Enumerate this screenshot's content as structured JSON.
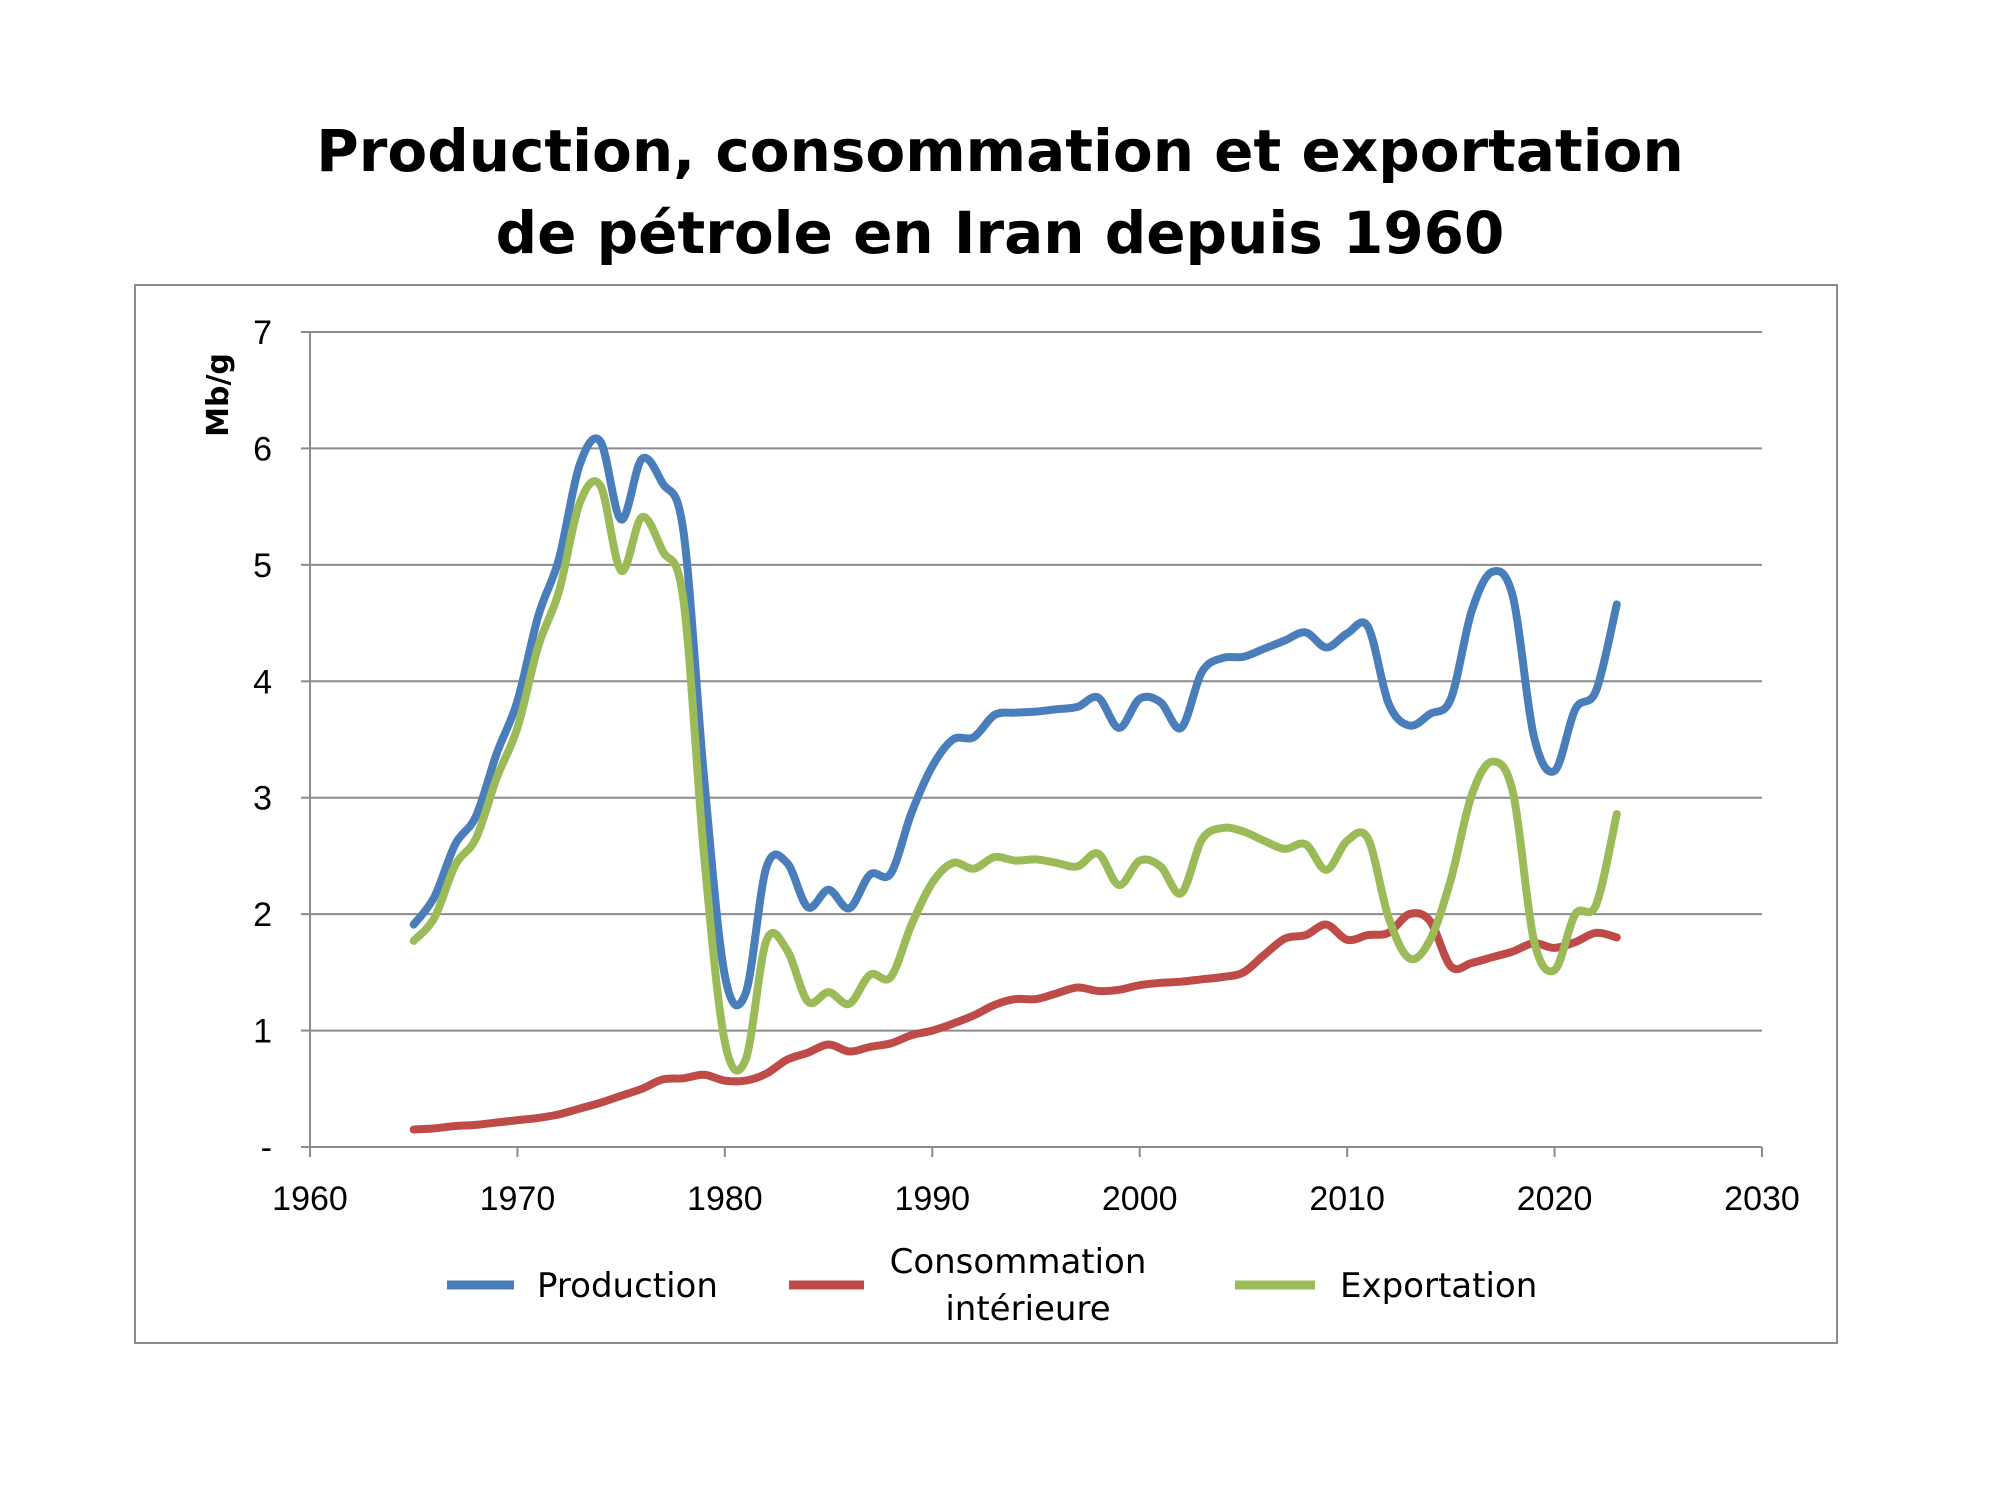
{
  "title": {
    "line1": "Production, consommation et exportation",
    "line2": "de pétrole en Iran depuis 1960"
  },
  "chart_data": {
    "type": "line",
    "ylabel": "Mb/g",
    "xlabel": "",
    "xlim": [
      1960,
      2030
    ],
    "ylim": [
      0,
      7
    ],
    "x_ticks": [
      "1960",
      "1970",
      "1980",
      "1990",
      "2000",
      "2010",
      "2020",
      "2030"
    ],
    "y_ticks": [
      "-",
      "1",
      "2",
      "3",
      "4",
      "5",
      "6",
      "7"
    ],
    "grid": "horizontal",
    "legend_position": "bottom",
    "series": [
      {
        "name": "Production",
        "color": "#4a7ebb",
        "points": [
          [
            1965,
            1.91
          ],
          [
            1966,
            2.15
          ],
          [
            1967,
            2.6
          ],
          [
            1968,
            2.84
          ],
          [
            1969,
            3.38
          ],
          [
            1970,
            3.83
          ],
          [
            1971,
            4.56
          ],
          [
            1972,
            5.05
          ],
          [
            1973,
            5.86
          ],
          [
            1974,
            6.06
          ],
          [
            1975,
            5.39
          ],
          [
            1976,
            5.91
          ],
          [
            1977,
            5.7
          ],
          [
            1978,
            5.29
          ],
          [
            1979,
            3.17
          ],
          [
            1980,
            1.47
          ],
          [
            1981,
            1.32
          ],
          [
            1982,
            2.4
          ],
          [
            1983,
            2.44
          ],
          [
            1984,
            2.06
          ],
          [
            1985,
            2.21
          ],
          [
            1986,
            2.05
          ],
          [
            1987,
            2.34
          ],
          [
            1988,
            2.35
          ],
          [
            1989,
            2.87
          ],
          [
            1990,
            3.27
          ],
          [
            1991,
            3.5
          ],
          [
            1992,
            3.52
          ],
          [
            1993,
            3.71
          ],
          [
            1994,
            3.73
          ],
          [
            1995,
            3.74
          ],
          [
            1996,
            3.76
          ],
          [
            1997,
            3.78
          ],
          [
            1998,
            3.86
          ],
          [
            1999,
            3.6
          ],
          [
            2000,
            3.85
          ],
          [
            2001,
            3.82
          ],
          [
            2002,
            3.6
          ],
          [
            2003,
            4.08
          ],
          [
            2004,
            4.2
          ],
          [
            2005,
            4.21
          ],
          [
            2006,
            4.28
          ],
          [
            2007,
            4.35
          ],
          [
            2008,
            4.42
          ],
          [
            2009,
            4.29
          ],
          [
            2010,
            4.41
          ],
          [
            2011,
            4.47
          ],
          [
            2012,
            3.81
          ],
          [
            2013,
            3.62
          ],
          [
            2014,
            3.72
          ],
          [
            2015,
            3.85
          ],
          [
            2016,
            4.6
          ],
          [
            2017,
            4.94
          ],
          [
            2018,
            4.72
          ],
          [
            2019,
            3.53
          ],
          [
            2020,
            3.23
          ],
          [
            2021,
            3.76
          ],
          [
            2022,
            3.92
          ],
          [
            2023,
            4.66
          ]
        ]
      },
      {
        "name": "Consommation intérieure",
        "color": "#be4b48",
        "points": [
          [
            1965,
            0.15
          ],
          [
            1966,
            0.16
          ],
          [
            1967,
            0.18
          ],
          [
            1968,
            0.19
          ],
          [
            1969,
            0.21
          ],
          [
            1970,
            0.23
          ],
          [
            1971,
            0.25
          ],
          [
            1972,
            0.28
          ],
          [
            1973,
            0.33
          ],
          [
            1974,
            0.38
          ],
          [
            1975,
            0.44
          ],
          [
            1976,
            0.5
          ],
          [
            1977,
            0.58
          ],
          [
            1978,
            0.59
          ],
          [
            1979,
            0.62
          ],
          [
            1980,
            0.57
          ],
          [
            1981,
            0.57
          ],
          [
            1982,
            0.63
          ],
          [
            1983,
            0.75
          ],
          [
            1984,
            0.81
          ],
          [
            1985,
            0.88
          ],
          [
            1986,
            0.82
          ],
          [
            1987,
            0.86
          ],
          [
            1988,
            0.89
          ],
          [
            1989,
            0.96
          ],
          [
            1990,
            1.0
          ],
          [
            1991,
            1.06
          ],
          [
            1992,
            1.13
          ],
          [
            1993,
            1.22
          ],
          [
            1994,
            1.27
          ],
          [
            1995,
            1.27
          ],
          [
            1996,
            1.32
          ],
          [
            1997,
            1.37
          ],
          [
            1998,
            1.34
          ],
          [
            1999,
            1.35
          ],
          [
            2000,
            1.39
          ],
          [
            2001,
            1.41
          ],
          [
            2002,
            1.42
          ],
          [
            2003,
            1.44
          ],
          [
            2004,
            1.46
          ],
          [
            2005,
            1.5
          ],
          [
            2006,
            1.65
          ],
          [
            2007,
            1.79
          ],
          [
            2008,
            1.82
          ],
          [
            2009,
            1.91
          ],
          [
            2010,
            1.78
          ],
          [
            2011,
            1.82
          ],
          [
            2012,
            1.84
          ],
          [
            2013,
            2.0
          ],
          [
            2014,
            1.94
          ],
          [
            2015,
            1.55
          ],
          [
            2016,
            1.58
          ],
          [
            2017,
            1.63
          ],
          [
            2018,
            1.68
          ],
          [
            2019,
            1.75
          ],
          [
            2020,
            1.71
          ],
          [
            2021,
            1.76
          ],
          [
            2022,
            1.84
          ],
          [
            2023,
            1.8
          ]
        ]
      },
      {
        "name": "Exportation",
        "color": "#9bbb59",
        "points": [
          [
            1965,
            1.77
          ],
          [
            1966,
            1.97
          ],
          [
            1967,
            2.42
          ],
          [
            1968,
            2.65
          ],
          [
            1969,
            3.17
          ],
          [
            1970,
            3.6
          ],
          [
            1971,
            4.3
          ],
          [
            1972,
            4.77
          ],
          [
            1973,
            5.53
          ],
          [
            1974,
            5.68
          ],
          [
            1975,
            4.95
          ],
          [
            1976,
            5.41
          ],
          [
            1977,
            5.12
          ],
          [
            1978,
            4.7
          ],
          [
            1979,
            2.5
          ],
          [
            1980,
            0.9
          ],
          [
            1981,
            0.75
          ],
          [
            1982,
            1.77
          ],
          [
            1983,
            1.69
          ],
          [
            1984,
            1.25
          ],
          [
            1985,
            1.33
          ],
          [
            1986,
            1.23
          ],
          [
            1987,
            1.48
          ],
          [
            1988,
            1.46
          ],
          [
            1989,
            1.91
          ],
          [
            1990,
            2.27
          ],
          [
            1991,
            2.44
          ],
          [
            1992,
            2.39
          ],
          [
            1993,
            2.49
          ],
          [
            1994,
            2.46
          ],
          [
            1995,
            2.47
          ],
          [
            1996,
            2.44
          ],
          [
            1997,
            2.41
          ],
          [
            1998,
            2.52
          ],
          [
            1999,
            2.25
          ],
          [
            2000,
            2.46
          ],
          [
            2001,
            2.41
          ],
          [
            2002,
            2.18
          ],
          [
            2003,
            2.64
          ],
          [
            2004,
            2.74
          ],
          [
            2005,
            2.71
          ],
          [
            2006,
            2.63
          ],
          [
            2007,
            2.56
          ],
          [
            2008,
            2.6
          ],
          [
            2009,
            2.38
          ],
          [
            2010,
            2.63
          ],
          [
            2011,
            2.65
          ],
          [
            2012,
            1.97
          ],
          [
            2013,
            1.62
          ],
          [
            2014,
            1.78
          ],
          [
            2015,
            2.3
          ],
          [
            2016,
            3.02
          ],
          [
            2017,
            3.31
          ],
          [
            2018,
            3.04
          ],
          [
            2019,
            1.78
          ],
          [
            2020,
            1.52
          ],
          [
            2021,
            2.0
          ],
          [
            2022,
            2.08
          ],
          [
            2023,
            2.86
          ]
        ]
      }
    ]
  },
  "legend": {
    "production": "Production",
    "consommation_line1": "Consommation",
    "consommation_line2": "intérieure",
    "exportation": "Exportation"
  }
}
